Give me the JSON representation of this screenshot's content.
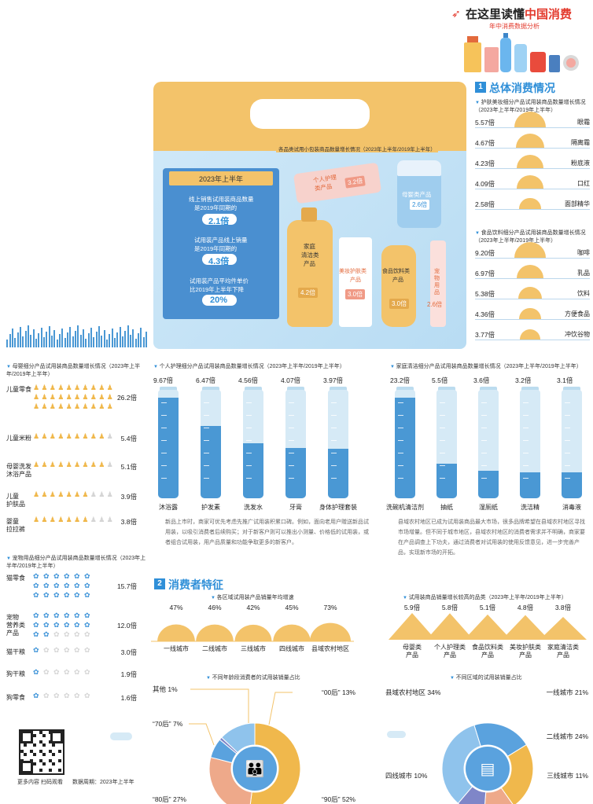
{
  "header": {
    "title_prefix": "在这里读懂",
    "title_highlight": "中国消费",
    "subtitle": "年中消费数据分析"
  },
  "colors": {
    "blue": "#2f8fd8",
    "orange": "#f0b84c",
    "light_blue": "#d6eaf6",
    "tube_blue": "#4a98d4"
  },
  "box": {
    "caption": "各品类试用小包装商品数量增长情况（2023年上半年/2019年上半年）",
    "panel": {
      "period": "2023年上半年",
      "stat1_text": [
        "线上销售试用装商品数量",
        "是2019年同期的"
      ],
      "stat1_value": "2.1倍",
      "stat2_text": [
        "试用装产品线上销量",
        "是2019年同期的"
      ],
      "stat2_value": "4.3倍",
      "stat3_text": [
        "试用装产品平均件单价",
        "比2019年上半年下降"
      ],
      "stat3_value": "20%"
    },
    "products": [
      {
        "label": [
          "个人护理",
          "类产品"
        ],
        "value": "3.2倍"
      },
      {
        "label": [
          "母婴类产品"
        ],
        "value": "2.6倍"
      },
      {
        "label": [
          "家庭",
          "清洁类",
          "产品"
        ],
        "value": "4.2倍"
      },
      {
        "label": [
          "美妆护肤类",
          "产品"
        ],
        "value": "3.0倍"
      },
      {
        "label": [
          "食品饮料类",
          "产品"
        ],
        "value": "3.0倍"
      },
      {
        "label": [
          "宠",
          "物",
          "用",
          "品"
        ],
        "value": "2.6倍"
      }
    ]
  },
  "section1": {
    "num": "1",
    "title": "总体消费情况"
  },
  "section2": {
    "num": "2",
    "title": "消费者特征"
  },
  "chart_data": [
    {
      "type": "bar",
      "title": "护肤美妆细分产品试用装商品数量增长情况（2023年上半年/2019年上半年）",
      "categories": [
        "眼霜",
        "隔离霜",
        "粉底液",
        "口红",
        "面部精华"
      ],
      "values": [
        5.57,
        4.67,
        4.23,
        4.09,
        2.58
      ],
      "value_labels": [
        "5.57倍",
        "4.67倍",
        "4.23倍",
        "4.09倍",
        "2.58倍"
      ]
    },
    {
      "type": "bar",
      "title": "食品饮料细分产品试用装商品数量增长情况（2023年上半年/2019年上半年）",
      "categories": [
        "咖啡",
        "乳品",
        "饮料",
        "方便食品",
        "冲饮谷物"
      ],
      "values": [
        9.2,
        6.97,
        5.38,
        4.36,
        3.77
      ],
      "value_labels": [
        "9.20倍",
        "6.97倍",
        "5.38倍",
        "4.36倍",
        "3.77倍"
      ]
    },
    {
      "type": "bar",
      "title": "母婴细分产品试用装商品数量增长情况（2023年上半年/2019年上半年）",
      "categories": [
        "儿童零食",
        "儿童米粉",
        "母婴洗发沐浴产品",
        "儿童护肤品",
        "婴童拉拉裤"
      ],
      "category_lines": [
        [
          "儿童零食"
        ],
        [
          "儿童米粉"
        ],
        [
          "母婴洗发",
          "沐浴产品"
        ],
        [
          "儿童",
          "护肤品"
        ],
        [
          "婴童",
          "拉拉裤"
        ]
      ],
      "values": [
        26.2,
        5.4,
        5.1,
        3.9,
        3.8
      ],
      "value_labels": [
        "26.2倍",
        "5.4倍",
        "5.1倍",
        "3.9倍",
        "3.8倍"
      ]
    },
    {
      "type": "bar",
      "title": "宠物用品细分产品试用装商品数量增长情况（2023年上半年/2019年上半年）",
      "categories": [
        "猫零食",
        "宠物营养类产品",
        "猫干粮",
        "狗干粮",
        "狗零食"
      ],
      "category_lines": [
        [
          "猫零食"
        ],
        [
          "宠物",
          "营养类",
          "产品"
        ],
        [
          "猫干粮"
        ],
        [
          "狗干粮"
        ],
        [
          "狗零食"
        ]
      ],
      "values": [
        15.7,
        12.0,
        3.0,
        1.9,
        1.6
      ],
      "value_labels": [
        "15.7倍",
        "12.0倍",
        "3.0倍",
        "1.9倍",
        "1.6倍"
      ]
    },
    {
      "type": "bar",
      "title": "个人护理细分产品试用装商品数量增长情况（2023年上半年/2019年上半年）",
      "categories": [
        "沐浴露",
        "护发素",
        "洗发水",
        "牙膏",
        "身体护理套装"
      ],
      "values": [
        9.67,
        6.47,
        4.56,
        4.07,
        3.97
      ],
      "value_labels": [
        "9.67倍",
        "6.47倍",
        "4.56倍",
        "4.07倍",
        "3.97倍"
      ]
    },
    {
      "type": "bar",
      "title": "家庭清洁细分产品试用装商品数量增长情况（2023年上半年/2019年上半年）",
      "categories": [
        "洗碗机清洁剂",
        "抽纸",
        "湿厕纸",
        "洗洁精",
        "消毒液"
      ],
      "values": [
        23.2,
        5.5,
        3.6,
        3.2,
        3.1
      ],
      "value_labels": [
        "23.2倍",
        "5.5倍",
        "3.6倍",
        "3.2倍",
        "3.1倍"
      ]
    },
    {
      "type": "bar",
      "title": "各区域试用装产品销量年均增速",
      "categories": [
        "一线城市",
        "二线城市",
        "三线城市",
        "四线城市",
        "县域农村地区"
      ],
      "values": [
        47,
        46,
        42,
        45,
        73
      ],
      "value_labels": [
        "47%",
        "46%",
        "42%",
        "45%",
        "73%"
      ]
    },
    {
      "type": "bar",
      "title": "试用装商品销量增长较高的品类（2023年上半年/2019年上半年）",
      "categories": [
        "母婴类产品",
        "个人护理类产品",
        "食品饮料类产品",
        "美妆护肤类产品",
        "家庭清洁类产品"
      ],
      "category_lines": [
        [
          "母婴类",
          "产品"
        ],
        [
          "个人护理类",
          "产品"
        ],
        [
          "食品饮料类",
          "产品"
        ],
        [
          "美妆护肤类",
          "产品"
        ],
        [
          "家庭清洁类",
          "产品"
        ]
      ],
      "values": [
        5.9,
        5.8,
        5.1,
        4.8,
        3.8
      ],
      "value_labels": [
        "5.9倍",
        "5.8倍",
        "5.1倍",
        "4.8倍",
        "3.8倍"
      ]
    },
    {
      "type": "pie",
      "title": "不同年龄段消费者的试用装销量占比",
      "categories": [
        "“90后”",
        "“80后”",
        "“70后”",
        "其他",
        "“00后”"
      ],
      "values": [
        52,
        27,
        7,
        1,
        13
      ],
      "value_labels": [
        "52%",
        "27%",
        "7%",
        "1%",
        "13%"
      ],
      "colors": [
        "#f0b84c",
        "#eea98a",
        "#5aa2de",
        "#7f86c8",
        "#8fc3ec"
      ]
    },
    {
      "type": "pie",
      "title": "不同区域的试用装销量占比",
      "categories": [
        "一线城市",
        "二线城市",
        "三线城市",
        "四线城市",
        "县域农村地区"
      ],
      "values": [
        21,
        24,
        11,
        10,
        34
      ],
      "value_labels": [
        "21%",
        "24%",
        "11%",
        "10%",
        "34%"
      ],
      "colors": [
        "#5aa2de",
        "#f0b84c",
        "#eea98a",
        "#7f86c8",
        "#8fc3ec"
      ]
    }
  ],
  "text1": "新品上市时，商家可优先考虑先推广试用装积累口碑。例如，面向老用户赠送新品试用装，以吸引消费者后续购买；对于新客户则可以推出小测量、价格低的试用装，或者组合试用装，用产品质量和功能争取更多的新客户。",
  "text2": "县域农村地区已成为试用装商品最大市场，很多品牌希望在县域农村地区寻找市场增量。但不同于城市地区，县域农村地区的消费者需求并不明确，商家要在产品调查上下功夫，通过消费者对试用装的使用反馈意见，进一步完善产品，实现新市场的开拓。",
  "footer": {
    "scan": "更多内容 扫码观看",
    "period": "数据周期：2023年上半年"
  }
}
